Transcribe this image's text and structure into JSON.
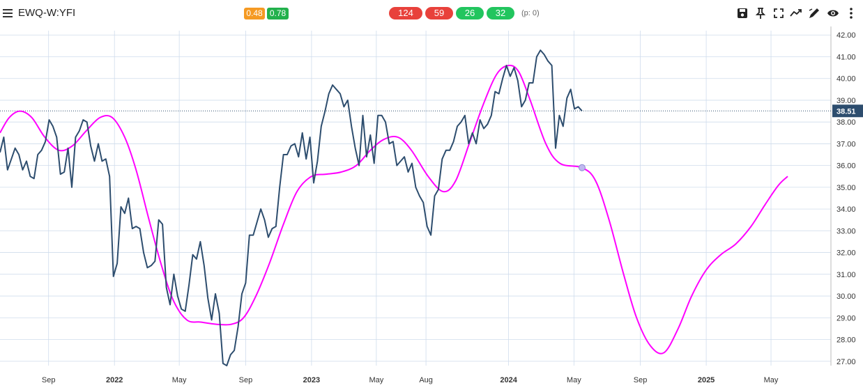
{
  "header": {
    "symbol": "EWQ-W:YFI",
    "badges_small": [
      {
        "text": "0.48",
        "color": "#f59a23"
      },
      {
        "text": "0.78",
        "color": "#22b14c"
      }
    ],
    "badges_round": [
      {
        "text": "124",
        "color": "#e8413b"
      },
      {
        "text": "59",
        "color": "#e8413b"
      },
      {
        "text": "26",
        "color": "#22c55e"
      },
      {
        "text": "32",
        "color": "#22c55e"
      }
    ],
    "p_note": "(p: 0)",
    "tools": [
      "save-icon",
      "pin-icon",
      "fullscreen-icon",
      "trend-icon",
      "draw-icon",
      "eye-icon",
      "more-icon"
    ]
  },
  "chart_data": {
    "type": "line",
    "y_ticks": [
      "27.00",
      "28.00",
      "29.00",
      "30.00",
      "31.00",
      "32.00",
      "33.00",
      "34.00",
      "35.00",
      "36.00",
      "37.00",
      "38.00",
      "39.00",
      "40.00",
      "41.00",
      "42.00"
    ],
    "x_ticks": [
      {
        "label": "Sep",
        "date": "2021-09-01"
      },
      {
        "label": "2022",
        "date": "2022-01-01"
      },
      {
        "label": "May",
        "date": "2022-05-01"
      },
      {
        "label": "Sep",
        "date": "2022-09-01"
      },
      {
        "label": "2023",
        "date": "2023-01-01"
      },
      {
        "label": "May",
        "date": "2023-05-01"
      },
      {
        "label": "Aug",
        "date": "2023-08-01"
      },
      {
        "label": "2024",
        "date": "2024-01-01"
      },
      {
        "label": "May",
        "date": "2024-05-01"
      },
      {
        "label": "Sep",
        "date": "2024-09-01"
      },
      {
        "label": "2025",
        "date": "2025-01-01"
      },
      {
        "label": "May",
        "date": "2025-05-01"
      }
    ],
    "x_range": [
      "2021-06-03",
      "2025-08-20"
    ],
    "ylim": [
      26.8,
      42.2
    ],
    "last_price": 38.51,
    "last_price_label": "38.51",
    "colors": {
      "price": "#2d4d6e",
      "cycle": "#ff00ff",
      "marker": "#c0b8f0",
      "badge": "#2d4d6e",
      "grid": "#cfdcec"
    },
    "series": [
      {
        "id": "price",
        "points": [
          [
            "2021-06-03",
            36.6
          ],
          [
            "2021-06-10",
            37.3
          ],
          [
            "2021-06-17",
            35.8
          ],
          [
            "2021-06-24",
            36.3
          ],
          [
            "2021-07-01",
            36.8
          ],
          [
            "2021-07-08",
            36.5
          ],
          [
            "2021-07-15",
            35.8
          ],
          [
            "2021-07-22",
            36.2
          ],
          [
            "2021-07-29",
            35.5
          ],
          [
            "2021-08-05",
            35.4
          ],
          [
            "2021-08-12",
            36.5
          ],
          [
            "2021-08-19",
            36.7
          ],
          [
            "2021-08-26",
            37.1
          ],
          [
            "2021-09-02",
            38.1
          ],
          [
            "2021-09-09",
            37.8
          ],
          [
            "2021-09-16",
            37.3
          ],
          [
            "2021-09-23",
            35.6
          ],
          [
            "2021-09-30",
            35.7
          ],
          [
            "2021-10-07",
            36.8
          ],
          [
            "2021-10-14",
            35.0
          ],
          [
            "2021-10-21",
            37.3
          ],
          [
            "2021-10-28",
            37.6
          ],
          [
            "2021-11-04",
            38.1
          ],
          [
            "2021-11-11",
            38.0
          ],
          [
            "2021-11-18",
            36.9
          ],
          [
            "2021-11-25",
            36.2
          ],
          [
            "2021-12-02",
            37.0
          ],
          [
            "2021-12-09",
            36.2
          ],
          [
            "2021-12-16",
            36.3
          ],
          [
            "2021-12-23",
            35.5
          ],
          [
            "2021-12-30",
            30.9
          ],
          [
            "2022-01-06",
            31.5
          ],
          [
            "2022-01-13",
            34.1
          ],
          [
            "2022-01-20",
            33.8
          ],
          [
            "2022-01-27",
            34.5
          ],
          [
            "2022-02-03",
            33.1
          ],
          [
            "2022-02-10",
            33.2
          ],
          [
            "2022-02-17",
            33.1
          ],
          [
            "2022-02-24",
            32.0
          ],
          [
            "2022-03-03",
            31.3
          ],
          [
            "2022-03-10",
            31.4
          ],
          [
            "2022-03-17",
            31.6
          ],
          [
            "2022-03-24",
            33.5
          ],
          [
            "2022-03-31",
            33.3
          ],
          [
            "2022-04-07",
            30.4
          ],
          [
            "2022-04-14",
            29.6
          ],
          [
            "2022-04-21",
            31.0
          ],
          [
            "2022-04-28",
            30.0
          ],
          [
            "2022-05-05",
            29.4
          ],
          [
            "2022-05-12",
            29.3
          ],
          [
            "2022-05-19",
            30.5
          ],
          [
            "2022-05-26",
            31.9
          ],
          [
            "2022-06-02",
            31.7
          ],
          [
            "2022-06-09",
            32.5
          ],
          [
            "2022-06-16",
            31.4
          ],
          [
            "2022-06-23",
            29.9
          ],
          [
            "2022-06-30",
            28.9
          ],
          [
            "2022-07-07",
            30.1
          ],
          [
            "2022-07-14",
            29.2
          ],
          [
            "2022-07-21",
            26.9
          ],
          [
            "2022-07-28",
            26.8
          ],
          [
            "2022-08-04",
            27.3
          ],
          [
            "2022-08-11",
            27.5
          ],
          [
            "2022-08-18",
            28.6
          ],
          [
            "2022-08-25",
            30.1
          ],
          [
            "2022-09-01",
            30.6
          ],
          [
            "2022-09-08",
            32.8
          ],
          [
            "2022-09-15",
            32.8
          ],
          [
            "2022-09-22",
            33.4
          ],
          [
            "2022-09-29",
            34.0
          ],
          [
            "2022-10-06",
            33.5
          ],
          [
            "2022-10-13",
            32.7
          ],
          [
            "2022-10-20",
            33.1
          ],
          [
            "2022-10-27",
            33.2
          ],
          [
            "2022-11-03",
            35.0
          ],
          [
            "2022-11-10",
            36.5
          ],
          [
            "2022-11-17",
            36.5
          ],
          [
            "2022-11-24",
            36.9
          ],
          [
            "2022-12-01",
            37.0
          ],
          [
            "2022-12-08",
            36.4
          ],
          [
            "2022-12-15",
            37.5
          ],
          [
            "2022-12-22",
            36.3
          ],
          [
            "2022-12-29",
            37.3
          ],
          [
            "2023-01-05",
            35.2
          ],
          [
            "2023-01-12",
            36.2
          ],
          [
            "2023-01-19",
            37.8
          ],
          [
            "2023-01-26",
            38.5
          ],
          [
            "2023-02-02",
            39.3
          ],
          [
            "2023-02-09",
            39.7
          ],
          [
            "2023-02-16",
            39.5
          ],
          [
            "2023-02-23",
            39.3
          ],
          [
            "2023-03-02",
            38.7
          ],
          [
            "2023-03-09",
            39.0
          ],
          [
            "2023-03-16",
            37.8
          ],
          [
            "2023-03-23",
            36.8
          ],
          [
            "2023-03-30",
            36.0
          ],
          [
            "2023-04-06",
            38.3
          ],
          [
            "2023-04-13",
            36.4
          ],
          [
            "2023-04-20",
            37.4
          ],
          [
            "2023-04-27",
            36.1
          ],
          [
            "2023-05-04",
            38.3
          ],
          [
            "2023-05-11",
            38.3
          ],
          [
            "2023-05-18",
            38.0
          ],
          [
            "2023-05-25",
            37.0
          ],
          [
            "2023-06-01",
            37.1
          ],
          [
            "2023-06-08",
            36.0
          ],
          [
            "2023-06-15",
            36.2
          ],
          [
            "2023-06-22",
            36.4
          ],
          [
            "2023-06-29",
            35.7
          ],
          [
            "2023-07-06",
            36.1
          ],
          [
            "2023-07-13",
            35.0
          ],
          [
            "2023-07-20",
            34.6
          ],
          [
            "2023-07-27",
            34.3
          ],
          [
            "2023-08-03",
            33.2
          ],
          [
            "2023-08-10",
            32.8
          ],
          [
            "2023-08-17",
            34.6
          ],
          [
            "2023-08-24",
            34.9
          ],
          [
            "2023-08-31",
            36.3
          ],
          [
            "2023-09-07",
            36.7
          ],
          [
            "2023-09-14",
            36.7
          ],
          [
            "2023-09-21",
            37.1
          ],
          [
            "2023-09-28",
            37.8
          ],
          [
            "2023-10-05",
            38.0
          ],
          [
            "2023-10-12",
            38.3
          ],
          [
            "2023-10-19",
            37.0
          ],
          [
            "2023-10-26",
            37.5
          ],
          [
            "2023-11-02",
            37.0
          ],
          [
            "2023-11-09",
            38.1
          ],
          [
            "2023-11-16",
            37.7
          ],
          [
            "2023-11-23",
            37.9
          ],
          [
            "2023-11-30",
            38.3
          ],
          [
            "2023-12-07",
            39.4
          ],
          [
            "2023-12-14",
            39.3
          ],
          [
            "2023-12-21",
            40.0
          ],
          [
            "2023-12-28",
            40.6
          ],
          [
            "2024-01-04",
            40.1
          ],
          [
            "2024-01-11",
            40.5
          ],
          [
            "2024-01-18",
            39.9
          ],
          [
            "2024-01-25",
            38.7
          ],
          [
            "2024-02-01",
            39.0
          ],
          [
            "2024-02-08",
            39.8
          ],
          [
            "2024-02-15",
            39.8
          ],
          [
            "2024-02-22",
            41.0
          ],
          [
            "2024-02-29",
            41.3
          ],
          [
            "2024-03-07",
            41.1
          ],
          [
            "2024-03-14",
            40.8
          ],
          [
            "2024-03-21",
            40.6
          ],
          [
            "2024-03-28",
            36.8
          ],
          [
            "2024-04-04",
            38.3
          ],
          [
            "2024-04-11",
            37.8
          ],
          [
            "2024-04-18",
            39.1
          ],
          [
            "2024-04-25",
            39.5
          ],
          [
            "2024-05-02",
            38.6
          ],
          [
            "2024-05-09",
            38.7
          ],
          [
            "2024-05-16",
            38.51
          ]
        ]
      },
      {
        "id": "cycle",
        "points": [
          [
            "2021-06-03",
            37.5
          ],
          [
            "2021-06-20",
            38.2
          ],
          [
            "2021-07-10",
            38.5
          ],
          [
            "2021-08-01",
            38.2
          ],
          [
            "2021-08-25",
            37.3
          ],
          [
            "2021-09-20",
            36.7
          ],
          [
            "2021-10-15",
            36.9
          ],
          [
            "2021-11-10",
            37.6
          ],
          [
            "2021-12-05",
            38.2
          ],
          [
            "2021-12-28",
            38.2
          ],
          [
            "2022-01-20",
            37.3
          ],
          [
            "2022-02-10",
            35.8
          ],
          [
            "2022-03-05",
            33.6
          ],
          [
            "2022-03-28",
            31.5
          ],
          [
            "2022-04-20",
            29.8
          ],
          [
            "2022-05-15",
            28.9
          ],
          [
            "2022-06-10",
            28.8
          ],
          [
            "2022-07-10",
            28.7
          ],
          [
            "2022-08-05",
            28.7
          ],
          [
            "2022-08-28",
            29.0
          ],
          [
            "2022-09-20",
            30.0
          ],
          [
            "2022-10-15",
            31.5
          ],
          [
            "2022-11-10",
            33.3
          ],
          [
            "2022-12-05",
            34.8
          ],
          [
            "2023-01-01",
            35.5
          ],
          [
            "2023-01-28",
            35.6
          ],
          [
            "2023-02-25",
            35.7
          ],
          [
            "2023-03-25",
            36.0
          ],
          [
            "2023-04-20",
            36.7
          ],
          [
            "2023-05-15",
            37.2
          ],
          [
            "2023-06-10",
            37.3
          ],
          [
            "2023-07-05",
            36.7
          ],
          [
            "2023-08-05",
            35.5
          ],
          [
            "2023-09-02",
            34.8
          ],
          [
            "2023-09-25",
            35.3
          ],
          [
            "2023-10-20",
            37.0
          ],
          [
            "2023-11-15",
            38.8
          ],
          [
            "2023-12-10",
            40.2
          ],
          [
            "2024-01-01",
            40.6
          ],
          [
            "2024-01-20",
            40.3
          ],
          [
            "2024-02-10",
            39.0
          ],
          [
            "2024-03-10",
            37.0
          ],
          [
            "2024-04-05",
            36.1
          ],
          [
            "2024-05-16",
            35.9
          ],
          [
            "2024-06-10",
            35.3
          ],
          [
            "2024-07-05",
            33.5
          ],
          [
            "2024-08-01",
            31.0
          ],
          [
            "2024-08-25",
            29.0
          ],
          [
            "2024-09-20",
            27.7
          ],
          [
            "2024-10-15",
            27.4
          ],
          [
            "2024-11-10",
            28.5
          ],
          [
            "2024-12-05",
            30.0
          ],
          [
            "2025-01-01",
            31.2
          ],
          [
            "2025-01-28",
            31.9
          ],
          [
            "2025-02-25",
            32.4
          ],
          [
            "2025-03-25",
            33.2
          ],
          [
            "2025-04-20",
            34.2
          ],
          [
            "2025-05-15",
            35.1
          ],
          [
            "2025-06-01",
            35.5
          ]
        ]
      }
    ],
    "marker": {
      "date": "2024-05-16",
      "value": 35.9
    }
  }
}
